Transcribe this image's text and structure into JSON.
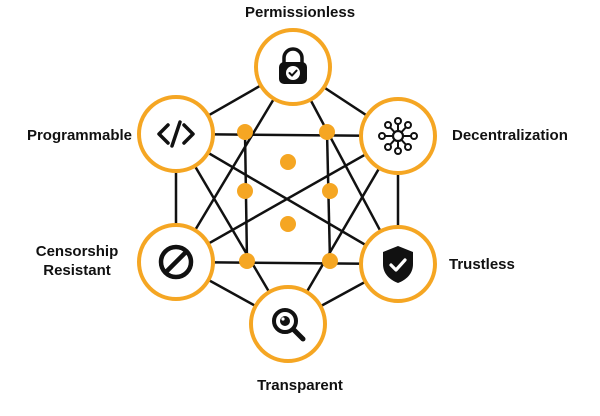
{
  "colors": {
    "accent": "#F5A623",
    "line": "#111111",
    "background": "#FFFFFF"
  },
  "nodes": [
    {
      "id": "permissionless",
      "label": "Permissionless",
      "icon": "lock-check-icon"
    },
    {
      "id": "decentralization",
      "label": "Decentralization",
      "icon": "network-hub-icon"
    },
    {
      "id": "trustless",
      "label": "Trustless",
      "icon": "shield-check-icon"
    },
    {
      "id": "transparent",
      "label": "Transparent",
      "icon": "magnifier-icon"
    },
    {
      "id": "censorship",
      "label": "Censorship\nResistant",
      "icon": "prohibited-icon"
    },
    {
      "id": "programmable",
      "label": "Programmable",
      "icon": "code-brackets-icon"
    }
  ]
}
